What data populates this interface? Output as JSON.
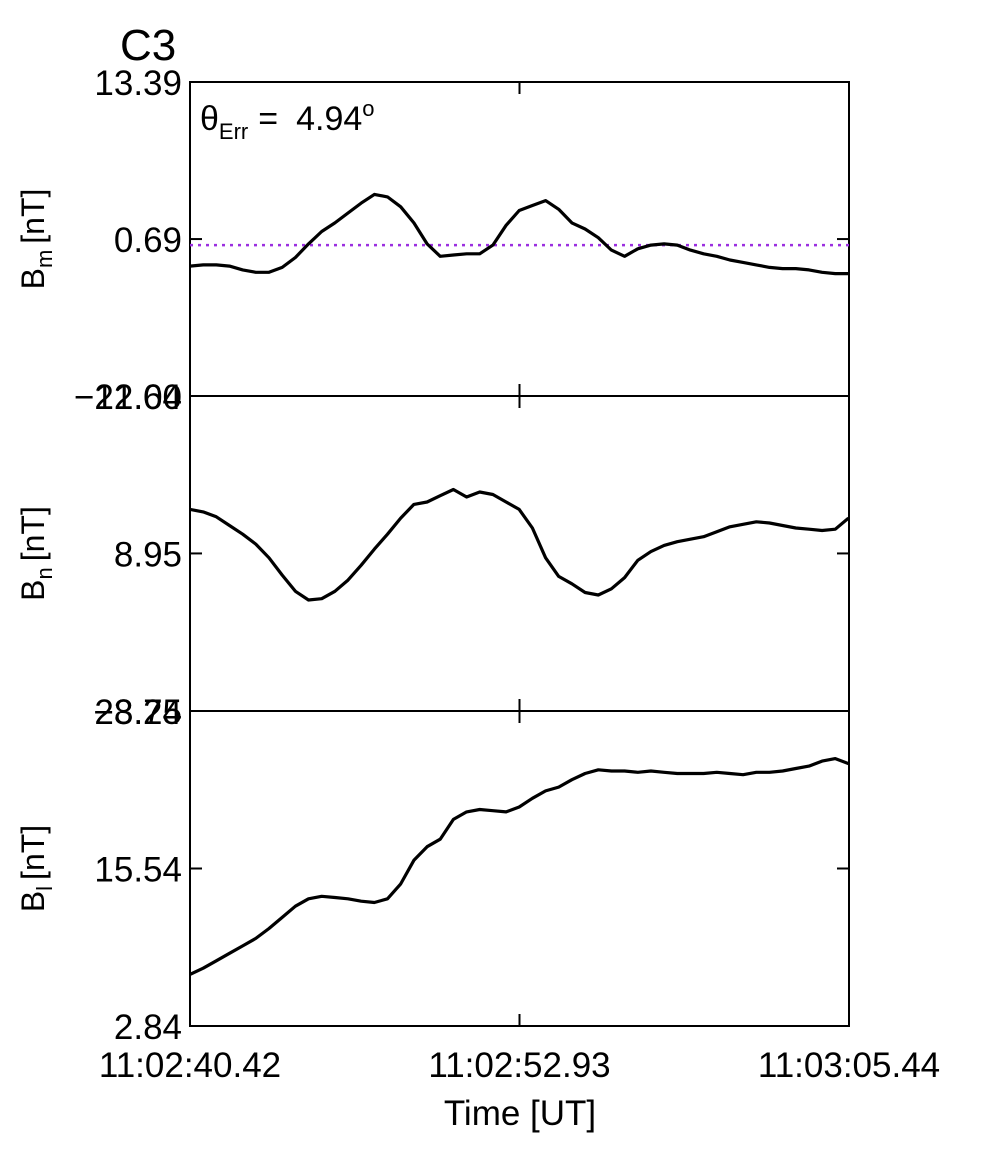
{
  "chart_data": {
    "type": "line",
    "title": "C3",
    "title_color": "#e8191c",
    "line_color": "#000000",
    "reference_color": "#9b2fe0",
    "xlabel": "Time [UT]",
    "x_ticks": [
      "11:02:40.42",
      "11:02:52.93",
      "11:03:05.44"
    ],
    "x_range_seconds": [
      0,
      25.02
    ],
    "panels": [
      {
        "id": "bm",
        "ylabel": {
          "main": "B",
          "sub": "m",
          "unit": "[nT]"
        },
        "ylim": [
          -12.0,
          13.39
        ],
        "y_ticks": [
          "13.39",
          "0.69",
          "−12.00"
        ],
        "y_tick_values": [
          13.39,
          0.69,
          -12.0
        ],
        "annotation": {
          "symbol": "θ",
          "sub": "Err",
          "eq": "=",
          "value": "4.94",
          "sup": "o"
        },
        "reference_line": 0.2,
        "x": [
          0,
          0.5,
          1,
          1.5,
          2,
          2.5,
          3,
          3.5,
          4,
          4.5,
          5,
          5.5,
          6,
          6.5,
          7,
          7.5,
          8,
          8.5,
          9,
          9.5,
          10,
          10.5,
          11,
          11.5,
          12,
          12.5,
          13,
          13.5,
          14,
          14.5,
          15,
          15.5,
          16,
          16.5,
          17,
          17.5,
          18,
          18.5,
          19,
          19.5,
          20,
          20.5,
          21,
          21.5,
          22,
          22.5,
          23,
          23.5,
          24,
          24.5,
          25
        ],
        "y": [
          -1.5,
          -1.4,
          -1.4,
          -1.5,
          -1.8,
          -2.0,
          -2.0,
          -1.6,
          -0.8,
          0.3,
          1.3,
          2.0,
          2.8,
          3.6,
          4.3,
          4.1,
          3.3,
          2.0,
          0.3,
          -0.7,
          -0.6,
          -0.5,
          -0.5,
          0.2,
          1.8,
          3.0,
          3.4,
          3.8,
          3.1,
          2.0,
          1.5,
          0.8,
          -0.2,
          -0.7,
          -0.1,
          0.2,
          0.3,
          0.2,
          -0.2,
          -0.5,
          -0.7,
          -1.0,
          -1.2,
          -1.4,
          -1.6,
          -1.7,
          -1.7,
          -1.8,
          -2.0,
          -2.1,
          -2.1
        ]
      },
      {
        "id": "bn",
        "ylabel": {
          "main": "B",
          "sub": "n",
          "unit": "[nT]"
        },
        "ylim": [
          -3.75,
          21.64
        ],
        "y_ticks": [
          "21.64",
          "8.95",
          "−3.75"
        ],
        "y_tick_values": [
          21.64,
          8.95,
          -3.75
        ],
        "x": [
          0,
          0.5,
          1,
          1.5,
          2,
          2.5,
          3,
          3.5,
          4,
          4.5,
          5,
          5.5,
          6,
          6.5,
          7,
          7.5,
          8,
          8.5,
          9,
          9.5,
          10,
          10.5,
          11,
          11.5,
          12,
          12.5,
          13,
          13.5,
          14,
          14.5,
          15,
          15.5,
          16,
          16.5,
          17,
          17.5,
          18,
          18.5,
          19,
          19.5,
          20,
          20.5,
          21,
          21.5,
          22,
          22.5,
          23,
          23.5,
          24,
          24.5,
          25
        ],
        "y": [
          12.5,
          12.3,
          11.9,
          11.2,
          10.5,
          9.7,
          8.6,
          7.2,
          5.9,
          5.2,
          5.3,
          5.9,
          6.8,
          8.0,
          9.3,
          10.5,
          11.8,
          12.9,
          13.1,
          13.6,
          14.1,
          13.5,
          13.9,
          13.7,
          13.1,
          12.5,
          11.0,
          8.6,
          7.1,
          6.5,
          5.8,
          5.6,
          6.1,
          7.0,
          8.4,
          9.1,
          9.6,
          9.9,
          10.1,
          10.3,
          10.7,
          11.1,
          11.3,
          11.5,
          11.4,
          11.2,
          11.0,
          10.9,
          10.8,
          10.9,
          11.8
        ]
      },
      {
        "id": "bl",
        "ylabel": {
          "main": "B",
          "sub": "l",
          "unit": "[nT]"
        },
        "ylim": [
          2.84,
          28.24
        ],
        "y_ticks": [
          "28.24",
          "15.54",
          "2.84"
        ],
        "y_tick_values": [
          28.24,
          15.54,
          2.84
        ],
        "x": [
          0,
          0.5,
          1,
          1.5,
          2,
          2.5,
          3,
          3.5,
          4,
          4.5,
          5,
          5.5,
          6,
          6.5,
          7,
          7.5,
          8,
          8.5,
          9,
          9.5,
          10,
          10.5,
          11,
          11.5,
          12,
          12.5,
          13,
          13.5,
          14,
          14.5,
          15,
          15.5,
          16,
          16.5,
          17,
          17.5,
          18,
          18.5,
          19,
          19.5,
          20,
          20.5,
          21,
          21.5,
          22,
          22.5,
          23,
          23.5,
          24,
          24.5,
          25
        ],
        "y": [
          7.0,
          7.5,
          8.1,
          8.7,
          9.3,
          9.9,
          10.7,
          11.6,
          12.5,
          13.1,
          13.3,
          13.2,
          13.1,
          12.9,
          12.8,
          13.1,
          14.3,
          16.2,
          17.3,
          17.9,
          19.5,
          20.1,
          20.3,
          20.2,
          20.1,
          20.5,
          21.2,
          21.8,
          22.1,
          22.7,
          23.2,
          23.5,
          23.4,
          23.4,
          23.3,
          23.4,
          23.3,
          23.2,
          23.2,
          23.2,
          23.3,
          23.2,
          23.1,
          23.3,
          23.3,
          23.4,
          23.6,
          23.8,
          24.2,
          24.4,
          24.0
        ]
      }
    ]
  }
}
